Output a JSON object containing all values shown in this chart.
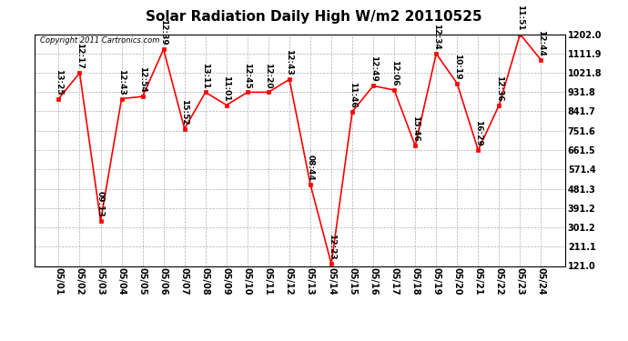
{
  "title": "Solar Radiation Daily High W/m2 20110525",
  "copyright": "Copyright 2011 Cartronics.com",
  "dates": [
    "05/01",
    "05/02",
    "05/03",
    "05/04",
    "05/05",
    "05/06",
    "05/07",
    "05/08",
    "05/09",
    "05/10",
    "05/11",
    "05/12",
    "05/13",
    "05/14",
    "05/15",
    "05/16",
    "05/17",
    "05/18",
    "05/19",
    "05/20",
    "05/21",
    "05/22",
    "05/23",
    "05/24"
  ],
  "values": [
    901.0,
    1021.0,
    331.0,
    901.0,
    911.0,
    1131.0,
    761.0,
    931.0,
    871.0,
    931.0,
    931.0,
    991.0,
    501.0,
    131.0,
    841.0,
    961.0,
    941.0,
    681.0,
    1111.0,
    971.0,
    661.0,
    871.0,
    1202.0,
    1081.0
  ],
  "time_labels": [
    "13:25",
    "12:17",
    "09:13",
    "12:43",
    "12:54",
    "12:39",
    "15:52",
    "13:11",
    "11:01",
    "12:45",
    "12:20",
    "12:43",
    "08:44",
    "12:23",
    "11:46",
    "12:49",
    "12:06",
    "15:46",
    "12:34",
    "10:19",
    "16:29",
    "12:36",
    "11:51",
    "12:44"
  ],
  "ylim_min": 121.0,
  "ylim_max": 1202.0,
  "yticks": [
    121.0,
    211.1,
    301.2,
    391.2,
    481.3,
    571.4,
    661.5,
    751.6,
    841.7,
    931.8,
    1021.8,
    1111.9,
    1202.0
  ],
  "line_color": "#ff0000",
  "marker_color": "#ff0000",
  "bg_color": "#ffffff",
  "grid_color": "#b0b0b0",
  "title_fontsize": 11,
  "label_fontsize": 6.5,
  "copyright_fontsize": 6,
  "tick_fontsize": 7
}
